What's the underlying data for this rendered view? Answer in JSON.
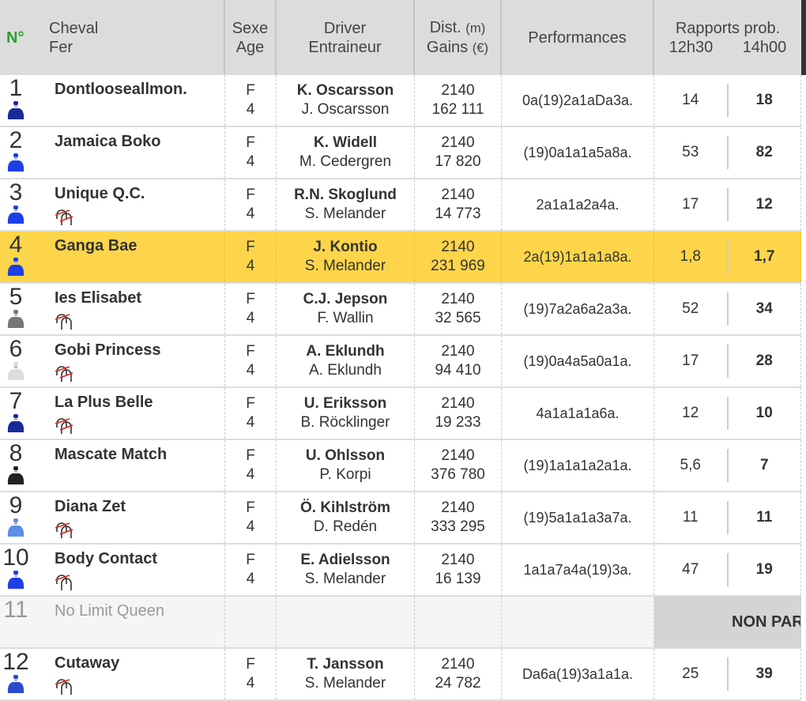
{
  "header": {
    "num": "N°",
    "cheval": "Cheval",
    "fer": "Fer",
    "sexe": "Sexe",
    "age": "Age",
    "driver": "Driver",
    "entraineur": "Entraineur",
    "dist": "Dist.",
    "dist_unit": "(m)",
    "gains": "Gains",
    "gains_unit": "(€)",
    "performances": "Performances",
    "rapports": "Rapports prob.",
    "t1": "12h30",
    "t2": "14h00"
  },
  "colors": {
    "highlight": "#fdd54a",
    "header_bg": "#dcdcdc",
    "num_header": "#2aa02a"
  },
  "rows": [
    {
      "n": "1",
      "name": "Dontlooseallmon.",
      "shoe": "none",
      "sexe": "F",
      "age": "4",
      "driver": "K. Oscarsson",
      "trainer": "J. Oscarsson",
      "dist": "2140",
      "gains": "162 111",
      "perf": "0a(19)2a1aDa3a.",
      "o1": "14",
      "o2": "18",
      "jacket": "#1a2a9a"
    },
    {
      "n": "2",
      "name": "Jamaica Boko",
      "shoe": "none",
      "sexe": "F",
      "age": "4",
      "driver": "K. Widell",
      "trainer": "M. Cedergren",
      "dist": "2140",
      "gains": "17 820",
      "perf": "(19)0a1a1a5a8a.",
      "o1": "53",
      "o2": "82",
      "jacket": "#1e3ee8"
    },
    {
      "n": "3",
      "name": "Unique Q.C.",
      "shoe": "both",
      "sexe": "F",
      "age": "4",
      "driver": "R.N. Skoglund",
      "trainer": "S. Melander",
      "dist": "2140",
      "gains": "14 773",
      "perf": "2a1a1a2a4a.",
      "o1": "17",
      "o2": "12",
      "jacket": "#1e3ee8"
    },
    {
      "n": "4",
      "name": "Ganga Bae",
      "shoe": "none",
      "sexe": "F",
      "age": "4",
      "driver": "J. Kontio",
      "trainer": "S. Melander",
      "dist": "2140",
      "gains": "231 969",
      "perf": "2a(19)1a1a1a8a.",
      "o1": "1,8",
      "o2": "1,7",
      "jacket": "#1e3ee8",
      "highlight": true
    },
    {
      "n": "5",
      "name": "Ies Elisabet",
      "shoe": "front",
      "sexe": "F",
      "age": "4",
      "driver": "C.J. Jepson",
      "trainer": "F. Wallin",
      "dist": "2140",
      "gains": "32 565",
      "perf": "(19)7a2a6a2a3a.",
      "o1": "52",
      "o2": "34",
      "jacket": "#777777"
    },
    {
      "n": "6",
      "name": "Gobi Princess",
      "shoe": "both",
      "sexe": "F",
      "age": "4",
      "driver": "A. Eklundh",
      "trainer": "A. Eklundh",
      "dist": "2140",
      "gains": "94 410",
      "perf": "(19)0a4a5a0a1a.",
      "o1": "17",
      "o2": "28",
      "jacket": "#dddddd"
    },
    {
      "n": "7",
      "name": "La Plus Belle",
      "shoe": "both",
      "sexe": "F",
      "age": "4",
      "driver": "U. Eriksson",
      "trainer": "B. Röcklinger",
      "dist": "2140",
      "gains": "19 233",
      "perf": "4a1a1a1a6a.",
      "o1": "12",
      "o2": "10",
      "jacket": "#1a2a9a"
    },
    {
      "n": "8",
      "name": "Mascate Match",
      "shoe": "none",
      "sexe": "F",
      "age": "4",
      "driver": "U. Ohlsson",
      "trainer": "P. Korpi",
      "dist": "2140",
      "gains": "376 780",
      "perf": "(19)1a1a1a2a1a.",
      "o1": "5,6",
      "o2": "7",
      "jacket": "#222222"
    },
    {
      "n": "9",
      "name": "Diana Zet",
      "shoe": "both",
      "sexe": "F",
      "age": "4",
      "driver": "Ö. Kihlström",
      "trainer": "D. Redén",
      "dist": "2140",
      "gains": "333 295",
      "perf": "(19)5a1a1a3a7a.",
      "o1": "11",
      "o2": "11",
      "jacket": "#5a8ee8"
    },
    {
      "n": "10",
      "name": "Body Contact",
      "shoe": "front",
      "sexe": "F",
      "age": "4",
      "driver": "E. Adielsson",
      "trainer": "S. Melander",
      "dist": "2140",
      "gains": "16 139",
      "perf": "1a1a7a4a(19)3a.",
      "o1": "47",
      "o2": "19",
      "jacket": "#1e3ee8"
    },
    {
      "n": "11",
      "name": "No Limit Queen",
      "nonpartant": "NON PARTANT"
    },
    {
      "n": "12",
      "name": "Cutaway",
      "shoe": "front",
      "sexe": "F",
      "age": "4",
      "driver": "T. Jansson",
      "trainer": "S. Melander",
      "dist": "2140",
      "gains": "24 782",
      "perf": "Da6a(19)3a1a1a.",
      "o1": "25",
      "o2": "39",
      "jacket": "#2a4ad0"
    }
  ]
}
